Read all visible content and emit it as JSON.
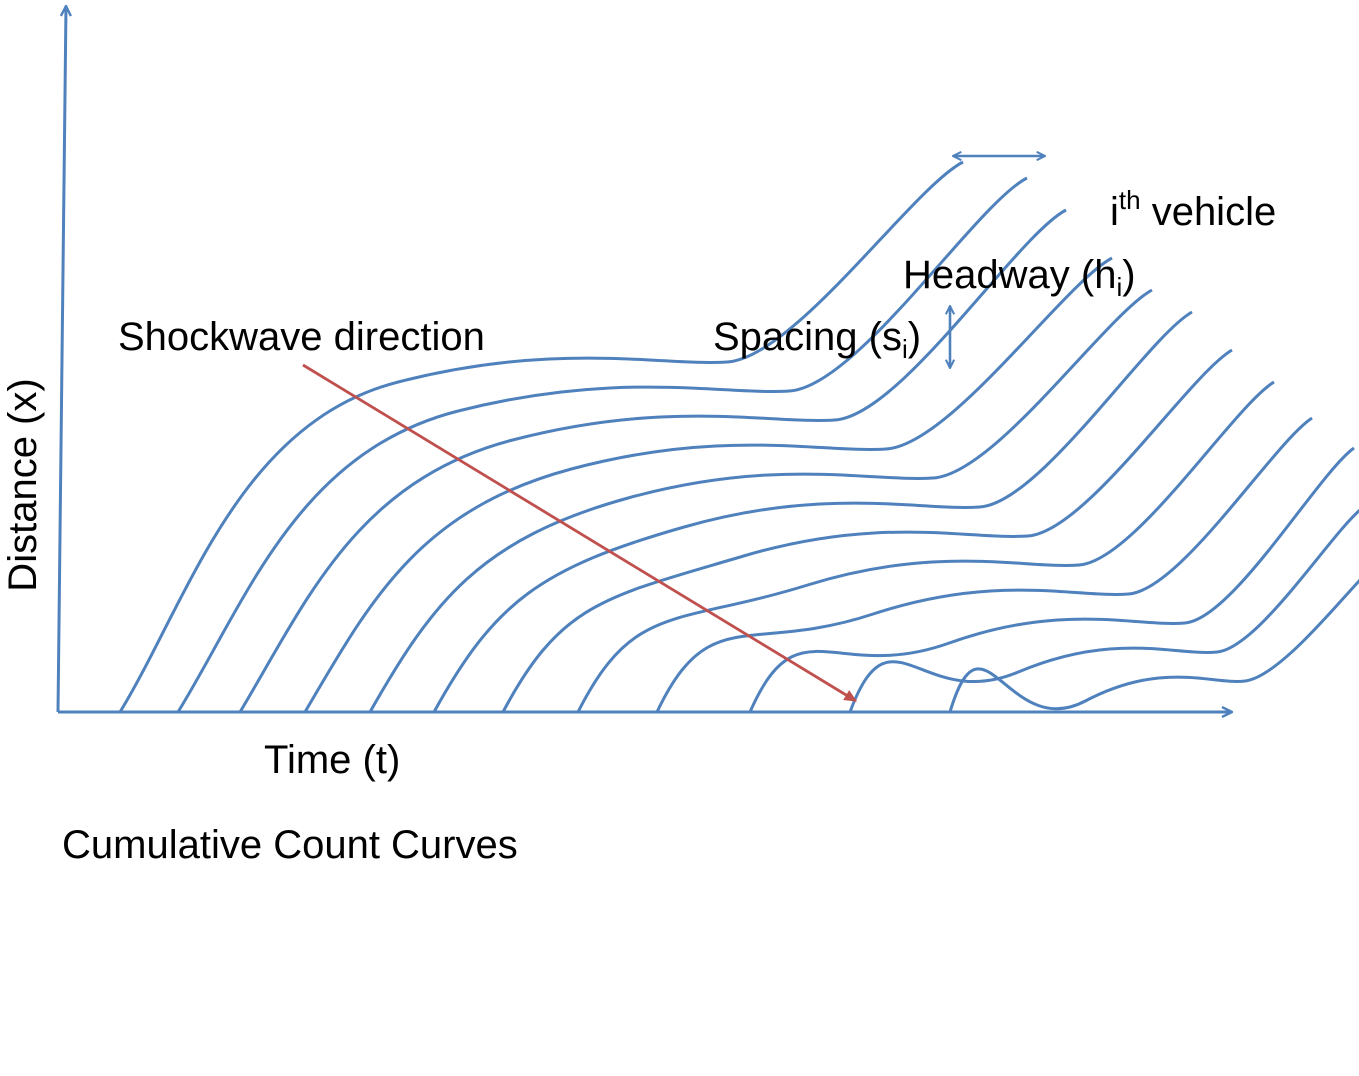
{
  "title": "Cumulative Count Curves",
  "axes": {
    "x_label": "Time (t)",
    "y_label": "Distance (x)"
  },
  "annotations": {
    "shockwave": "Shockwave direction",
    "vehicle": {
      "base": "i",
      "sup": "th",
      "rest": " vehicle"
    },
    "headway": {
      "base": "Headway (h",
      "sub": "i",
      "close": ")"
    },
    "spacing": {
      "base": "Spacing (s",
      "sub": "i",
      "close": ")"
    }
  },
  "colors": {
    "curves": "#4F81BD",
    "axes": "#4F81BD",
    "shockwave_arrow": "#C0504D",
    "text": "#000000"
  },
  "trajectory_count": 12
}
